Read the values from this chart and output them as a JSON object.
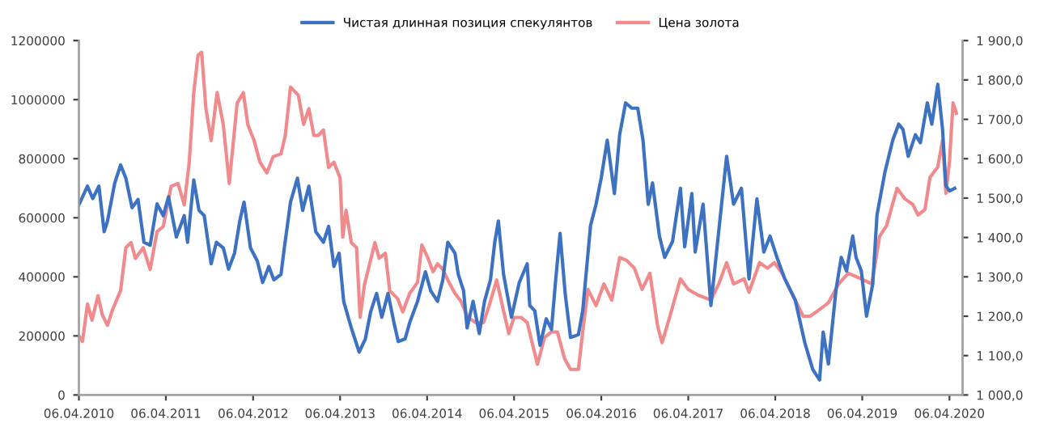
{
  "chart_data": {
    "type": "line",
    "xlim": [
      "2010-04-06",
      "2020-05-31"
    ],
    "xticks": [
      {
        "value": "2010-04-06",
        "label": "06.04.2010"
      },
      {
        "value": "2011-04-06",
        "label": "06.04.2011"
      },
      {
        "value": "2012-04-06",
        "label": "06.04.2012"
      },
      {
        "value": "2013-04-06",
        "label": "06.04.2013"
      },
      {
        "value": "2014-04-06",
        "label": "06.04.2014"
      },
      {
        "value": "2015-04-06",
        "label": "06.04.2015"
      },
      {
        "value": "2016-04-06",
        "label": "06.04.2016"
      },
      {
        "value": "2017-04-06",
        "label": "06.04.2017"
      },
      {
        "value": "2018-04-06",
        "label": "06.04.2018"
      },
      {
        "value": "2019-04-06",
        "label": "06.04.2019"
      },
      {
        "value": "2020-04-06",
        "label": "06.04.2020"
      }
    ],
    "ylim": [
      0,
      1200000
    ],
    "yticks": [
      0,
      200000,
      400000,
      600000,
      800000,
      1000000,
      1200000
    ],
    "y2lim": [
      1000,
      1900
    ],
    "y2ticks": [
      {
        "value": 1000,
        "label": "1 000,0"
      },
      {
        "value": 1100,
        "label": "1 100,0"
      },
      {
        "value": 1200,
        "label": "1 200,0"
      },
      {
        "value": 1300,
        "label": "1 300,0"
      },
      {
        "value": 1400,
        "label": "1 400,0"
      },
      {
        "value": 1500,
        "label": "1 500,0"
      },
      {
        "value": 1600,
        "label": "1 600,0"
      },
      {
        "value": 1700,
        "label": "1 700,0"
      },
      {
        "value": 1800,
        "label": "1 800,0"
      },
      {
        "value": 1900,
        "label": "1 900,0"
      }
    ],
    "grid": false,
    "legend": "top",
    "marker": "none",
    "line_style": "solid",
    "series": [
      {
        "name": "Цена золота",
        "color": "#f08a8c",
        "axis": "y2",
        "x": [
          "2010-04-06",
          "2010-04-21",
          "2010-05-12",
          "2010-05-31",
          "2010-06-25",
          "2010-07-13",
          "2010-08-04",
          "2010-08-26",
          "2010-09-28",
          "2010-10-20",
          "2010-11-11",
          "2010-11-29",
          "2011-01-01",
          "2011-01-30",
          "2011-02-28",
          "2011-03-26",
          "2011-04-28",
          "2011-05-27",
          "2011-06-22",
          "2011-07-13",
          "2011-08-01",
          "2011-08-19",
          "2011-09-03",
          "2011-09-21",
          "2011-10-13",
          "2011-11-07",
          "2011-12-03",
          "2011-12-28",
          "2012-01-30",
          "2012-02-25",
          "2012-03-15",
          "2012-04-10",
          "2012-05-05",
          "2012-06-03",
          "2012-06-29",
          "2012-08-01",
          "2012-08-19",
          "2012-09-10",
          "2012-10-13",
          "2012-11-04",
          "2012-11-26",
          "2012-12-17",
          "2013-01-04",
          "2013-01-26",
          "2013-02-17",
          "2013-03-11",
          "2013-04-06",
          "2013-04-17",
          "2013-05-01",
          "2013-05-23",
          "2013-06-14",
          "2013-06-29",
          "2013-07-17",
          "2013-08-08",
          "2013-08-30",
          "2013-09-17",
          "2013-10-13",
          "2013-10-31",
          "2013-12-03",
          "2013-12-25",
          "2014-01-23",
          "2014-02-25",
          "2014-03-15",
          "2014-04-10",
          "2014-05-01",
          "2014-05-20",
          "2014-06-11",
          "2014-07-02",
          "2014-08-01",
          "2014-08-26",
          "2014-09-24",
          "2014-10-27",
          "2014-11-29",
          "2014-12-21",
          "2015-01-23",
          "2015-02-17",
          "2015-03-15",
          "2015-04-06",
          "2015-05-05",
          "2015-05-31",
          "2015-07-13",
          "2015-08-12",
          "2015-09-10",
          "2015-10-05",
          "2015-11-04",
          "2015-11-29",
          "2016-01-01",
          "2016-01-19",
          "2016-02-10",
          "2016-03-15",
          "2016-04-17",
          "2016-05-20",
          "2016-06-22",
          "2016-07-21",
          "2016-08-23",
          "2016-09-24",
          "2016-10-27",
          "2016-11-29",
          "2016-12-17",
          "2017-01-19",
          "2017-03-04",
          "2017-04-06",
          "2017-05-16",
          "2017-07-10",
          "2017-08-12",
          "2017-09-14",
          "2017-10-13",
          "2017-11-26",
          "2017-12-17",
          "2018-01-30",
          "2018-03-04",
          "2018-04-02",
          "2018-05-05",
          "2018-06-18",
          "2018-08-01",
          "2018-08-30",
          "2018-10-02",
          "2018-11-15",
          "2018-12-28",
          "2019-02-06",
          "2019-04-02",
          "2019-05-16",
          "2019-06-18",
          "2019-07-17",
          "2019-08-30",
          "2019-10-02",
          "2019-11-04",
          "2019-11-26",
          "2019-12-25",
          "2020-01-15",
          "2020-02-17",
          "2020-03-08",
          "2020-03-22",
          "2020-04-06",
          "2020-04-21",
          "2020-05-05"
        ],
        "values": [
          1150,
          1136,
          1231,
          1190,
          1252,
          1204,
          1177,
          1218,
          1265,
          1374,
          1387,
          1347,
          1374,
          1319,
          1415,
          1428,
          1530,
          1537,
          1483,
          1591,
          1768,
          1863,
          1870,
          1727,
          1646,
          1768,
          1686,
          1537,
          1741,
          1768,
          1686,
          1646,
          1591,
          1564,
          1605,
          1612,
          1659,
          1782,
          1761,
          1687,
          1727,
          1659,
          1659,
          1673,
          1578,
          1591,
          1551,
          1401,
          1469,
          1387,
          1374,
          1197,
          1279,
          1333,
          1387,
          1347,
          1360,
          1265,
          1245,
          1211,
          1258,
          1286,
          1381,
          1347,
          1313,
          1333,
          1319,
          1292,
          1258,
          1238,
          1197,
          1184,
          1184,
          1224,
          1292,
          1224,
          1156,
          1197,
          1197,
          1184,
          1078,
          1146,
          1160,
          1160,
          1092,
          1065,
          1065,
          1160,
          1268,
          1227,
          1282,
          1241,
          1349,
          1342,
          1322,
          1268,
          1309,
          1173,
          1133,
          1200,
          1295,
          1268,
          1254,
          1241,
          1282,
          1336,
          1282,
          1295,
          1261,
          1336,
          1322,
          1336,
          1309,
          1254,
          1200,
          1200,
          1214,
          1234,
          1282,
          1309,
          1295,
          1282,
          1403,
          1430,
          1525,
          1498,
          1484,
          1457,
          1471,
          1552,
          1579,
          1647,
          1512,
          1593,
          1742,
          1715
        ]
      },
      {
        "name": "Чистая длинная позиция спекулянтов",
        "color": "#3d72c2",
        "x": [
          "2010-04-06",
          "2010-04-21",
          "2010-05-12",
          "2010-06-03",
          "2010-06-29",
          "2010-07-21",
          "2010-08-04",
          "2010-09-03",
          "2010-09-28",
          "2010-10-20",
          "2010-11-15",
          "2010-12-10",
          "2011-01-04",
          "2011-01-30",
          "2011-02-28",
          "2011-03-26",
          "2011-04-17",
          "2011-05-20",
          "2011-06-22",
          "2011-07-06",
          "2011-08-01",
          "2011-08-23",
          "2011-09-14",
          "2011-10-13",
          "2011-11-04",
          "2011-12-03",
          "2011-12-25",
          "2012-01-19",
          "2012-02-10",
          "2012-02-28",
          "2012-03-26",
          "2012-04-24",
          "2012-05-16",
          "2012-06-11",
          "2012-07-02",
          "2012-08-01",
          "2012-08-15",
          "2012-09-10",
          "2012-10-09",
          "2012-10-31",
          "2012-11-26",
          "2012-12-25",
          "2013-01-26",
          "2013-02-17",
          "2013-03-11",
          "2013-04-02",
          "2013-04-21",
          "2013-05-23",
          "2013-06-25",
          "2013-07-21",
          "2013-08-12",
          "2013-09-06",
          "2013-09-28",
          "2013-10-24",
          "2013-11-18",
          "2013-12-06",
          "2014-01-04",
          "2014-01-23",
          "2014-02-25",
          "2014-03-30",
          "2014-04-21",
          "2014-05-20",
          "2014-06-11",
          "2014-07-02",
          "2014-08-01",
          "2014-08-15",
          "2014-09-06",
          "2014-09-21",
          "2014-10-16",
          "2014-11-11",
          "2014-12-03",
          "2014-12-28",
          "2015-01-15",
          "2015-01-30",
          "2015-02-21",
          "2015-03-26",
          "2015-04-28",
          "2015-05-31",
          "2015-06-11",
          "2015-07-02",
          "2015-07-24",
          "2015-08-19",
          "2015-09-10",
          "2015-09-28",
          "2015-10-16",
          "2015-11-07",
          "2015-11-29",
          "2016-01-01",
          "2016-01-19",
          "2016-02-21",
          "2016-03-15",
          "2016-04-06",
          "2016-05-01",
          "2016-05-31",
          "2016-06-22",
          "2016-07-17",
          "2016-08-12",
          "2016-09-06",
          "2016-09-28",
          "2016-10-20",
          "2016-11-07",
          "2016-12-06",
          "2016-12-28",
          "2017-01-30",
          "2017-03-04",
          "2017-03-22",
          "2017-04-21",
          "2017-05-05",
          "2017-06-07",
          "2017-07-10",
          "2017-08-12",
          "2017-09-14",
          "2017-10-13",
          "2017-11-15",
          "2017-12-17",
          "2018-01-19",
          "2018-02-17",
          "2018-03-15",
          "2018-04-13",
          "2018-05-16",
          "2018-06-29",
          "2018-08-08",
          "2018-09-10",
          "2018-10-09",
          "2018-10-24",
          "2018-11-15",
          "2018-12-17",
          "2019-01-08",
          "2019-01-30",
          "2019-02-25",
          "2019-03-11",
          "2019-04-02",
          "2019-04-24",
          "2019-05-20",
          "2019-06-07",
          "2019-07-10",
          "2019-08-12",
          "2019-09-06",
          "2019-09-24",
          "2019-10-16",
          "2019-11-15",
          "2019-12-06",
          "2020-01-04",
          "2020-01-23",
          "2020-02-17",
          "2020-03-08",
          "2020-03-22",
          "2020-04-06",
          "2020-04-28"
        ],
        "values": [
          644000,
          670000,
          707000,
          665000,
          707000,
          553000,
          589000,
          716000,
          779000,
          734000,
          634000,
          662000,
          517000,
          507000,
          647000,
          607000,
          671000,
          535000,
          607000,
          517000,
          728000,
          625000,
          607000,
          444000,
          517000,
          498000,
          426000,
          480000,
          589000,
          653000,
          498000,
          453000,
          381000,
          435000,
          390000,
          408000,
          498000,
          653000,
          734000,
          625000,
          707000,
          553000,
          517000,
          571000,
          435000,
          480000,
          317000,
          227000,
          145000,
          190000,
          281000,
          344000,
          263000,
          344000,
          245000,
          181000,
          190000,
          245000,
          317000,
          417000,
          353000,
          317000,
          390000,
          517000,
          480000,
          408000,
          353000,
          227000,
          317000,
          208000,
          317000,
          390000,
          517000,
          589000,
          408000,
          263000,
          381000,
          444000,
          303000,
          285000,
          168000,
          258000,
          222000,
          393000,
          547000,
          339000,
          195000,
          204000,
          285000,
          574000,
          646000,
          736000,
          863000,
          682000,
          881000,
          989000,
          971000,
          971000,
          863000,
          646000,
          718000,
          538000,
          466000,
          520000,
          700000,
          502000,
          682000,
          484000,
          646000,
          303000,
          556000,
          808000,
          646000,
          700000,
          393000,
          664000,
          484000,
          538000,
          466000,
          393000,
          321000,
          177000,
          87000,
          51000,
          213000,
          105000,
          357000,
          466000,
          420000,
          538000,
          466000,
          420000,
          267000,
          375000,
          610000,
          754000,
          863000,
          917000,
          899000,
          808000,
          881000,
          854000,
          989000,
          917000,
          1052000,
          899000,
          709000,
          691000,
          700000
        ]
      }
    ]
  }
}
